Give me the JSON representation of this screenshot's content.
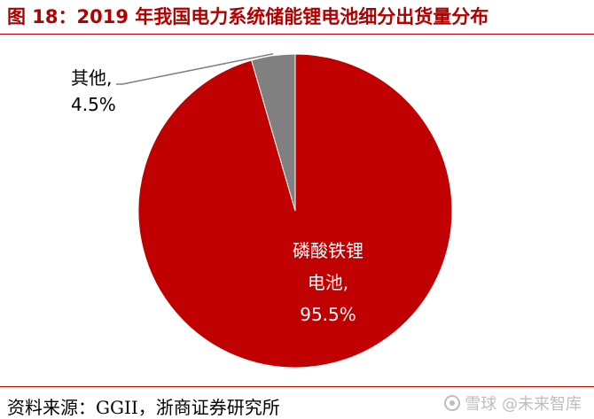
{
  "figure": {
    "title": "图 18：2019 年我国电力系统储能锂电池细分出货量分布",
    "source": "资料来源：GGII，浙商证券研究所",
    "watermark": "雪球 @未来智库"
  },
  "colors": {
    "accent": "#b00000",
    "slice_lfp": "#c00000",
    "slice_other": "#808080",
    "label_inside": "#ffffff",
    "label_outside": "#000000",
    "leader": "#808080"
  },
  "chart_data": {
    "type": "pie",
    "start_angle_deg": 0,
    "direction": "clockwise",
    "slices": [
      {
        "name": "磷酸铁锂电池",
        "label_lines": [
          "磷酸铁锂",
          "电池,"
        ],
        "value": 95.5,
        "value_label": "95.5%",
        "color": "#c00000",
        "label_position": "inside"
      },
      {
        "name": "其他",
        "label_lines": [
          "其他,"
        ],
        "value": 4.5,
        "value_label": "4.5%",
        "color": "#808080",
        "label_position": "outside-left"
      }
    ],
    "legend": "none"
  }
}
